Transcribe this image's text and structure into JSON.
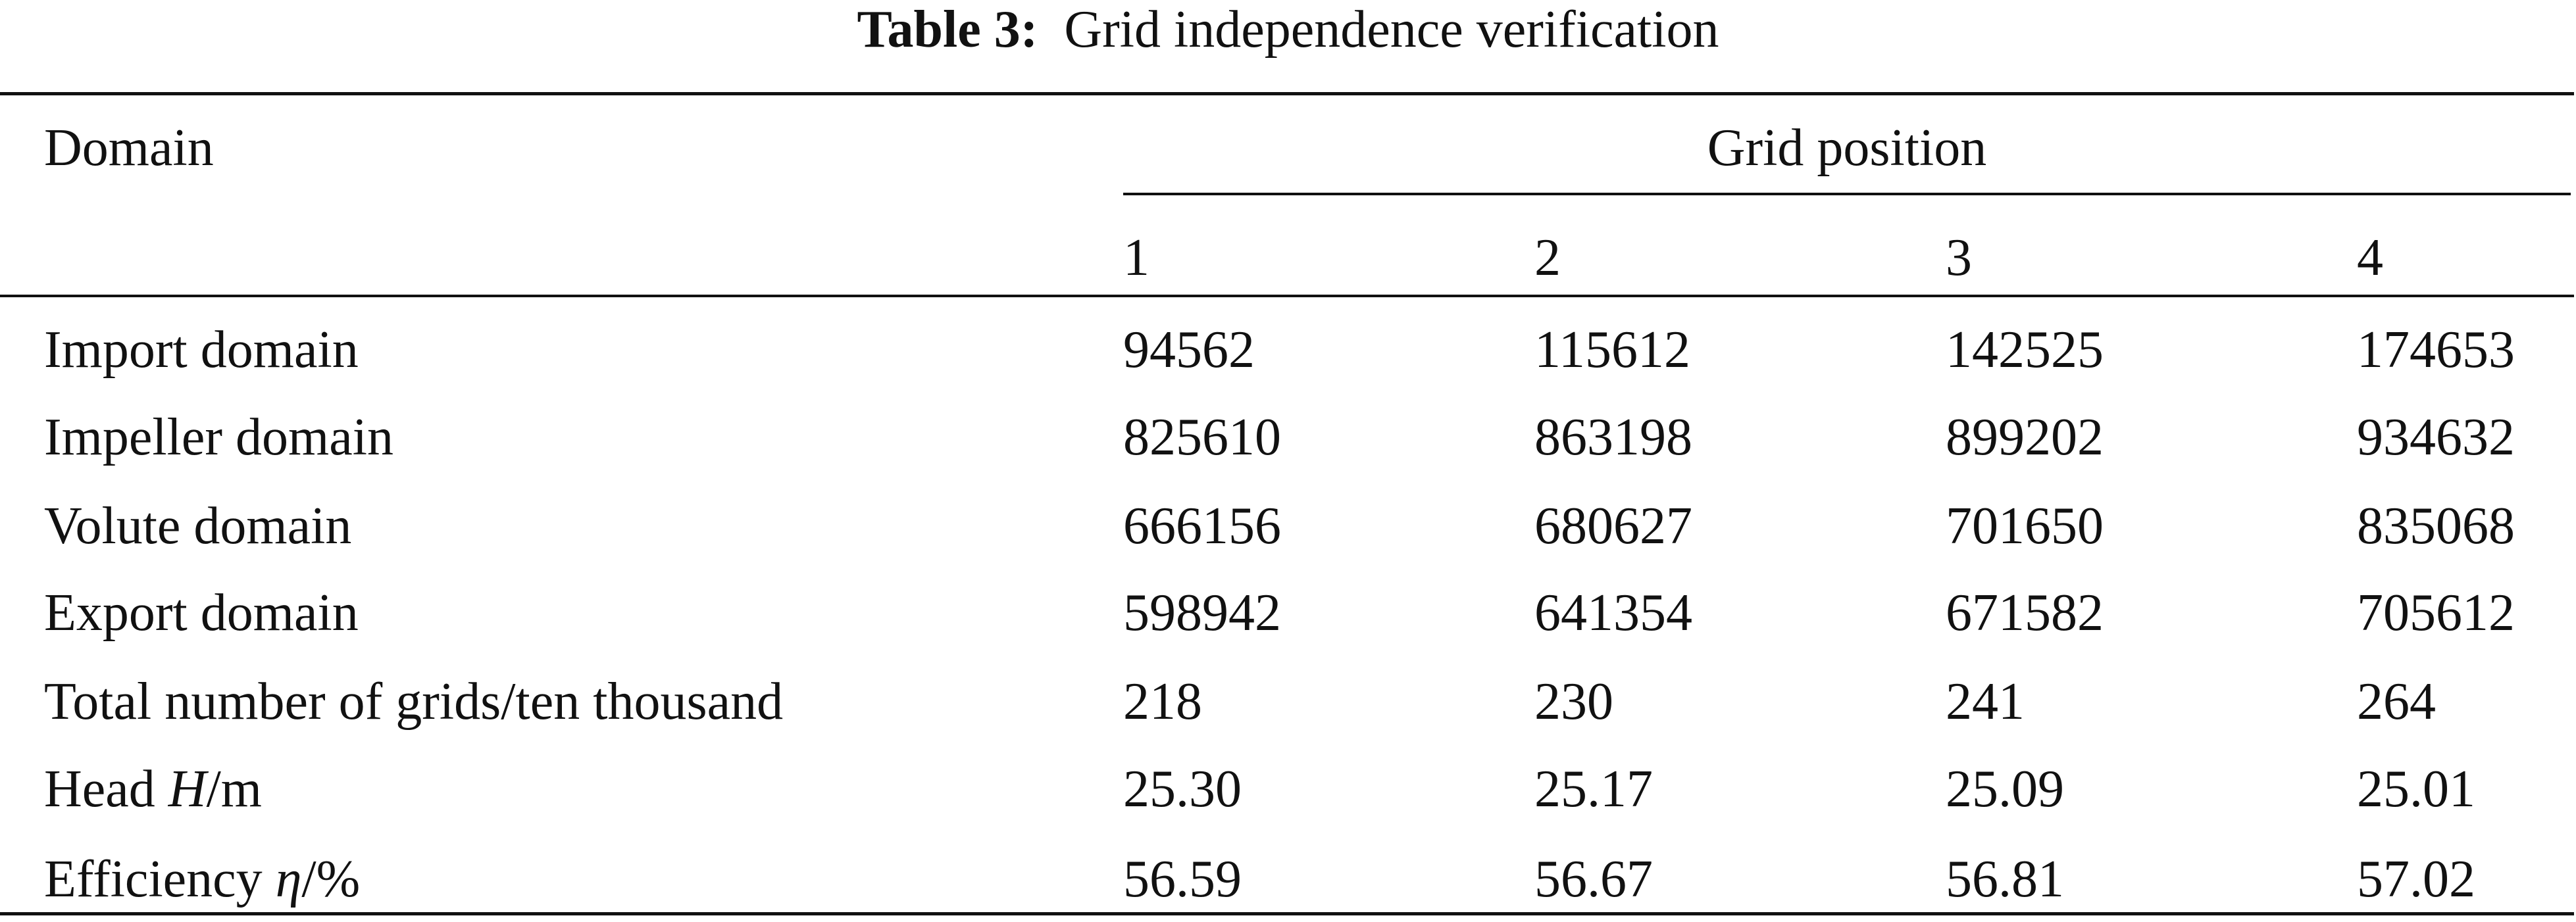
{
  "caption": {
    "label": "Table 3:",
    "title": "Grid independence verification"
  },
  "table": {
    "header": {
      "row_label": "Domain",
      "group": "Grid position",
      "columns": [
        "1",
        "2",
        "3",
        "4"
      ]
    },
    "rows": [
      {
        "label": [
          "Import domain"
        ],
        "values": [
          "94562",
          "115612",
          "142525",
          "174653"
        ]
      },
      {
        "label": [
          "Impeller domain"
        ],
        "values": [
          "825610",
          "863198",
          "899202",
          "934632"
        ]
      },
      {
        "label": [
          "Volute domain"
        ],
        "values": [
          "666156",
          "680627",
          "701650",
          "835068"
        ]
      },
      {
        "label": [
          "Export domain"
        ],
        "values": [
          "598942",
          "641354",
          "671582",
          "705612"
        ]
      },
      {
        "label": [
          "Total number of grids/ten thousand"
        ],
        "values": [
          "218",
          "230",
          "241",
          "264"
        ]
      },
      {
        "label": [
          "Head ",
          "H",
          "/m"
        ],
        "values": [
          "25.30",
          "25.17",
          "25.09",
          "25.01"
        ]
      },
      {
        "label": [
          "Efficiency ",
          "η",
          "/%"
        ],
        "values": [
          "56.59",
          "56.67",
          "56.81",
          "57.02"
        ]
      }
    ]
  }
}
